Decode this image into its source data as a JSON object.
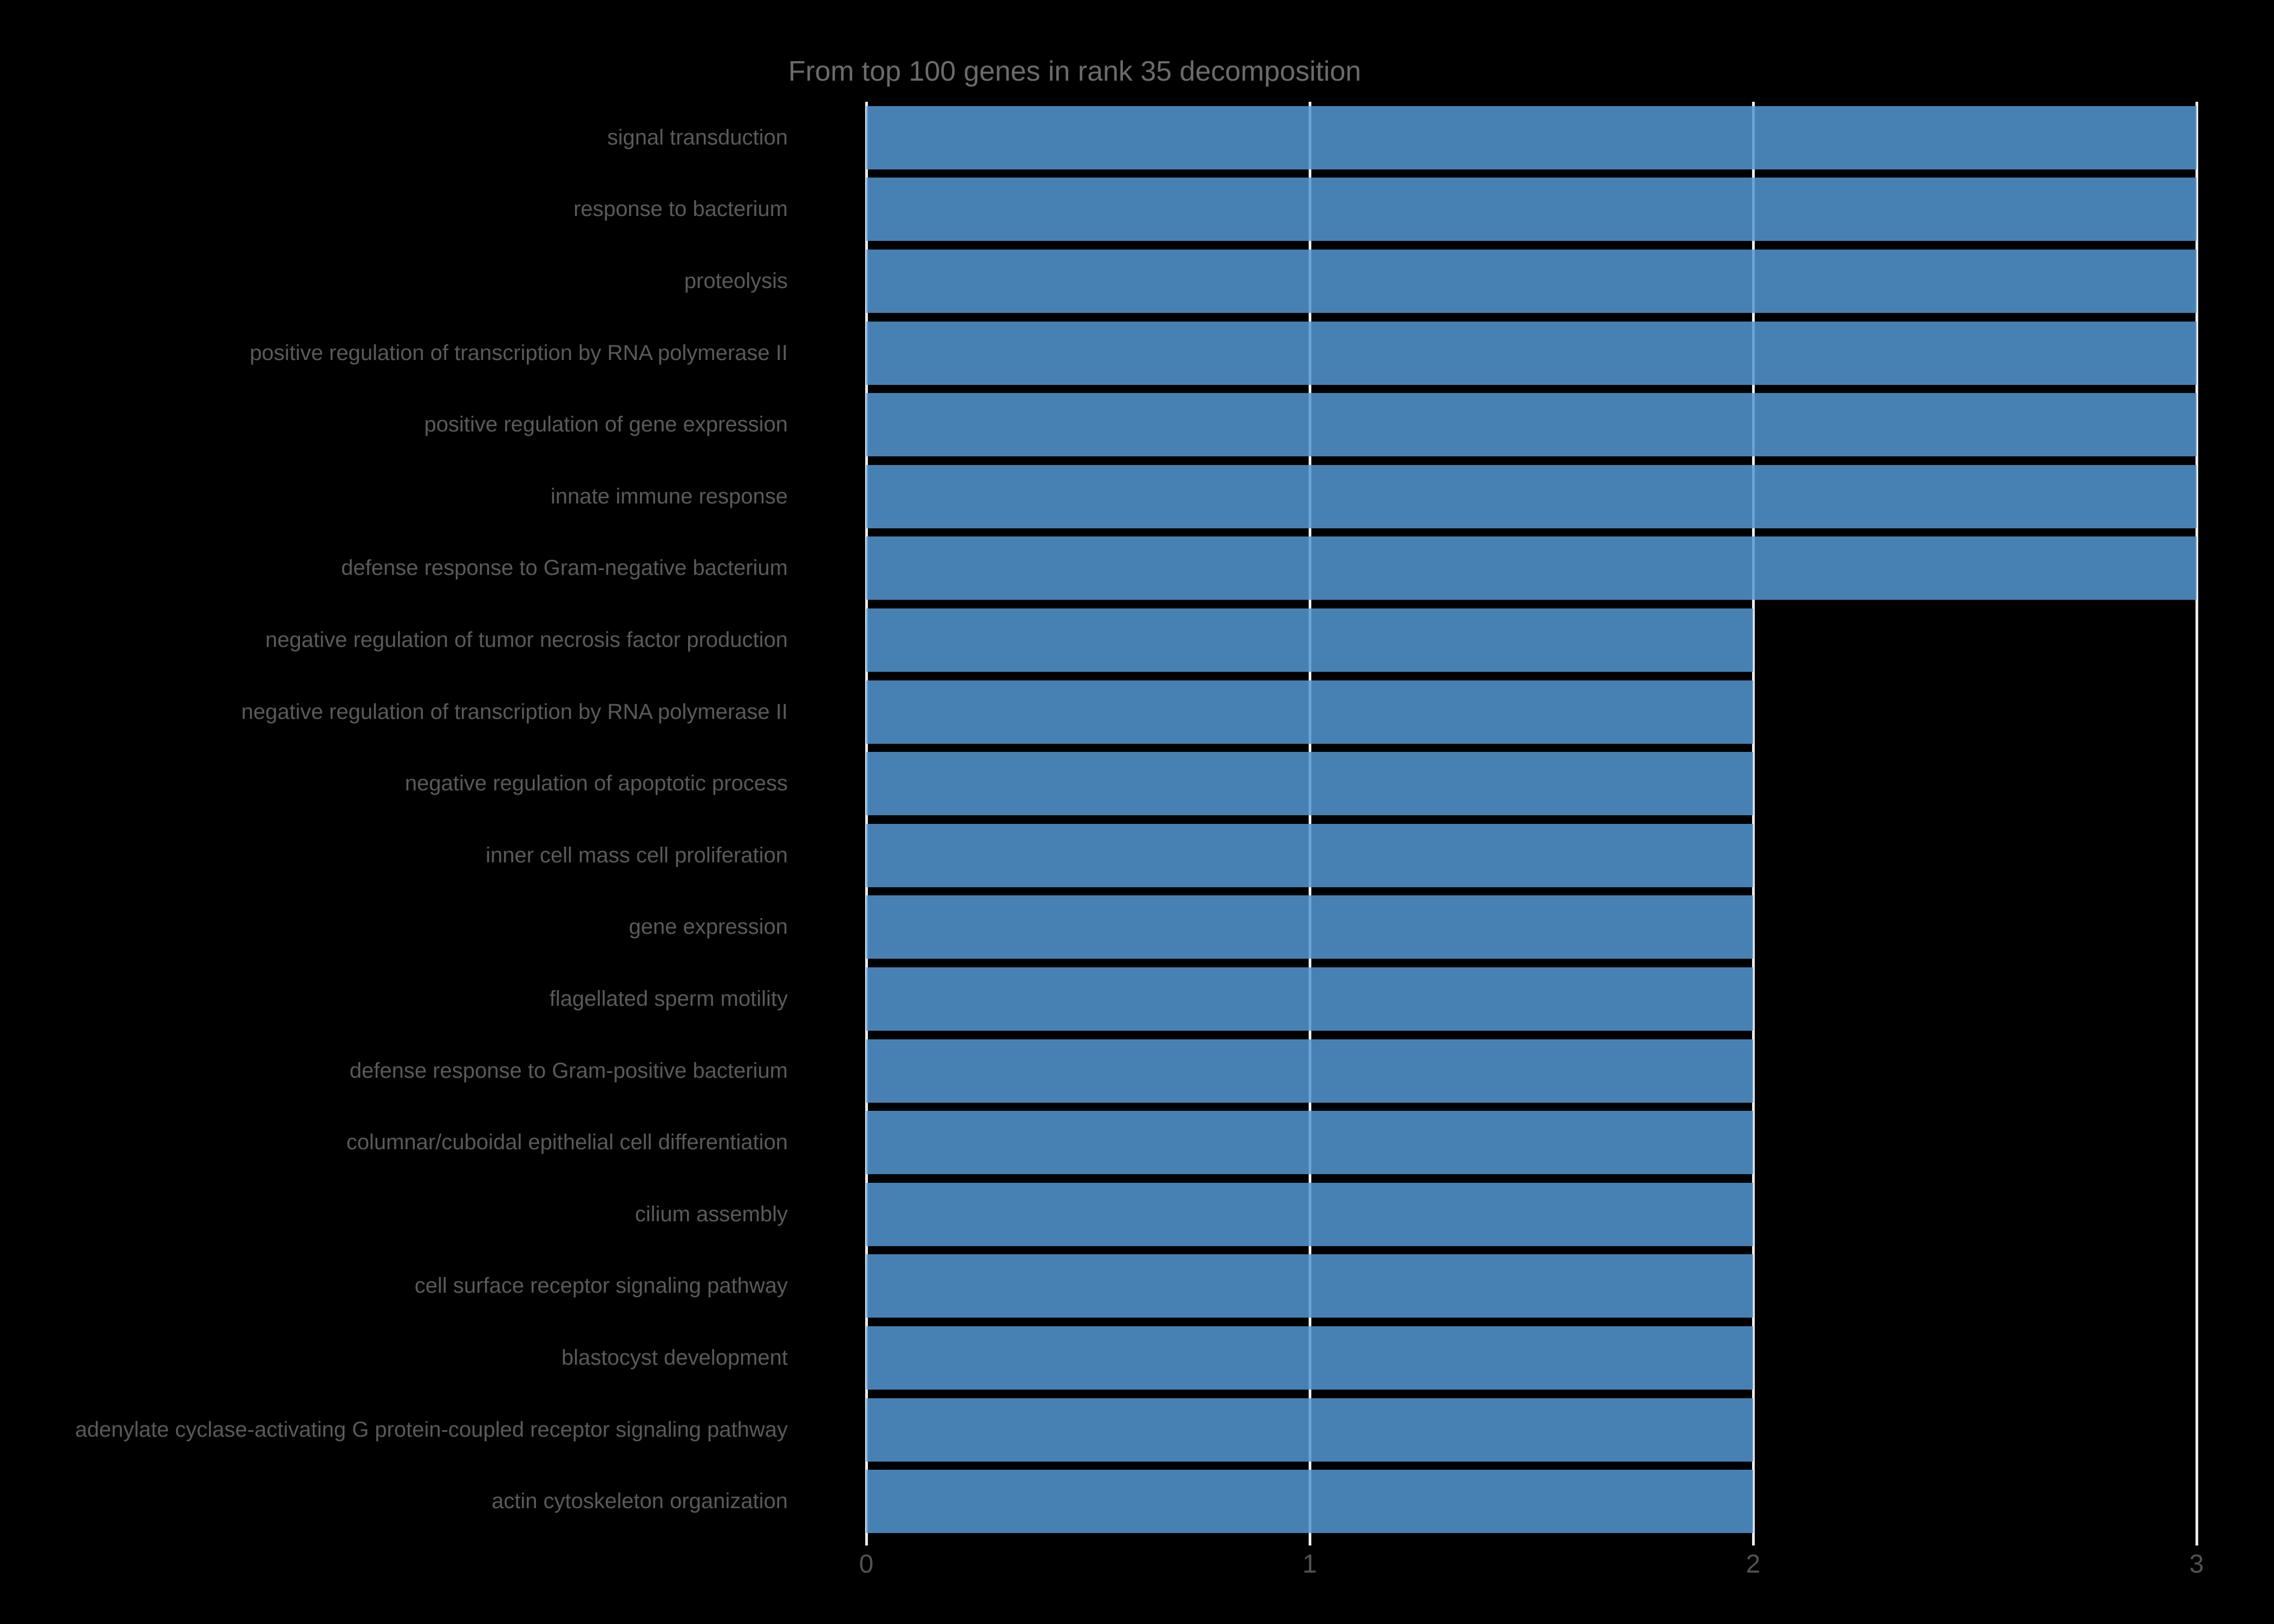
{
  "figure": {
    "background": "#000000"
  },
  "chart_data": {
    "type": "bar",
    "orientation": "horizontal",
    "title": "From top 100 genes in rank 35 decomposition",
    "categories": [
      "signal transduction",
      "response to bacterium",
      "proteolysis",
      "positive regulation of transcription by RNA polymerase II",
      "positive regulation of gene expression",
      "innate immune response",
      "defense response to Gram-negative bacterium",
      "negative regulation of tumor necrosis factor production",
      "negative regulation of transcription by RNA polymerase II",
      "negative regulation of apoptotic process",
      "inner cell mass cell proliferation",
      "gene expression",
      "flagellated sperm motility",
      "defense response to Gram-positive bacterium",
      "columnar/cuboidal epithelial cell differentiation",
      "cilium assembly",
      "cell surface receptor signaling pathway",
      "blastocyst development",
      "adenylate cyclase-activating G protein-coupled receptor signaling pathway",
      "actin cytoskeleton organization"
    ],
    "values": [
      3,
      3,
      3,
      3,
      3,
      3,
      3,
      2,
      2,
      2,
      2,
      2,
      2,
      2,
      2,
      2,
      2,
      2,
      2,
      2
    ],
    "xlabel": "",
    "ylabel": "",
    "xlim": [
      0,
      3
    ],
    "xticks": [
      0,
      1,
      2,
      3
    ],
    "xtick_labels": [
      "0",
      "1",
      "2",
      "3"
    ],
    "grid": "vertical",
    "legend": "none",
    "colors": {
      "background": "#000000",
      "bar_color": "#4781b3",
      "bar_fill": "rgba(84,152,211,0.85)",
      "grid_color": "#ebebeb",
      "title_color": "#6b6b6b",
      "label_color": "#5a5a5a",
      "tick_color": "#525252"
    }
  }
}
